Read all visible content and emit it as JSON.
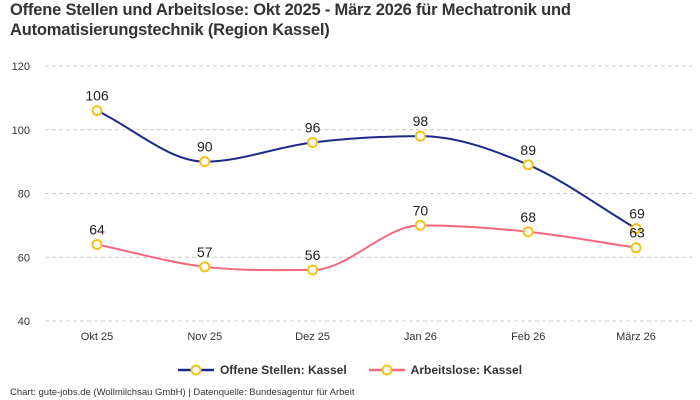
{
  "title": "Offene Stellen und Arbeitslose: Okt 2025 - März 2026 für Mechatronik und Automatisierungstechnik (Region Kassel)",
  "credit": "Chart: gute-jobs.de (Wollmilchsau GmbH) | Datenquelle: Bundesagentur für Arbeit",
  "chart_data": {
    "type": "line",
    "categories": [
      "Okt 25",
      "Nov 25",
      "Dez 25",
      "Jan 26",
      "Feb 26",
      "März 26"
    ],
    "series": [
      {
        "name": "Offene Stellen: Kassel",
        "values": [
          106,
          90,
          96,
          98,
          89,
          69
        ],
        "color": "#1c2a8a"
      },
      {
        "name": "Arbeitslose: Kassel",
        "values": [
          64,
          57,
          56,
          70,
          68,
          63
        ],
        "color": "#f6677f"
      }
    ],
    "marker_color": "#f5c21b",
    "ylim": [
      40,
      120
    ],
    "yticks": [
      40,
      60,
      80,
      100,
      120
    ],
    "grid": true,
    "legend": "bottom",
    "smooth": true
  }
}
